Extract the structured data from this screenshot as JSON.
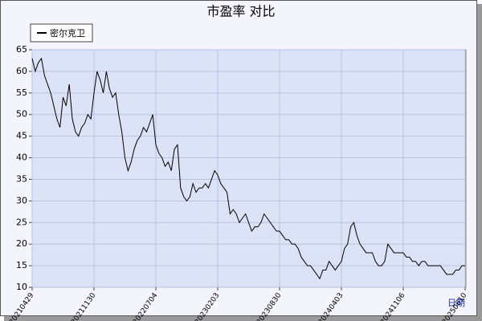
{
  "chart_data": {
    "type": "line",
    "title": "市盈率 对比",
    "x_label": "日期",
    "categories": [
      "20210429",
      null,
      null,
      null,
      null,
      null,
      null,
      null,
      null,
      null,
      null,
      null,
      null,
      null,
      null,
      null,
      null,
      null,
      null,
      null,
      "20211130",
      null,
      null,
      null,
      null,
      null,
      null,
      null,
      null,
      null,
      null,
      null,
      null,
      null,
      null,
      null,
      null,
      null,
      null,
      null,
      "20220704",
      null,
      null,
      null,
      null,
      null,
      null,
      null,
      null,
      null,
      null,
      null,
      null,
      null,
      null,
      null,
      null,
      null,
      null,
      null,
      "20230203",
      null,
      null,
      null,
      null,
      null,
      null,
      null,
      null,
      null,
      null,
      null,
      null,
      null,
      null,
      null,
      null,
      null,
      null,
      null,
      "20230830",
      null,
      null,
      null,
      null,
      null,
      null,
      null,
      null,
      null,
      null,
      null,
      null,
      null,
      null,
      null,
      null,
      null,
      null,
      null,
      "20240403",
      null,
      null,
      null,
      null,
      null,
      null,
      null,
      null,
      null,
      null,
      null,
      null,
      null,
      null,
      null,
      null,
      null,
      null,
      null,
      "20241106",
      null,
      null,
      null,
      null,
      null,
      null,
      null,
      null,
      null,
      null,
      null,
      null,
      null,
      null,
      null,
      null,
      null,
      null,
      null,
      "20250610"
    ],
    "series": [
      {
        "name": "密尔克卫",
        "color": "#000000",
        "values": [
          63,
          60,
          62,
          63,
          59,
          57,
          55,
          52,
          49,
          47,
          54,
          52,
          57,
          49,
          46,
          45,
          47,
          48,
          50,
          49,
          55,
          60,
          58,
          55,
          60,
          56,
          54,
          55,
          50,
          46,
          40,
          37,
          39,
          42,
          44,
          45,
          47,
          46,
          48,
          50,
          43,
          41,
          40,
          38,
          39,
          37,
          42,
          43,
          33,
          31,
          30,
          31,
          34,
          32,
          33,
          33,
          34,
          33,
          35,
          37,
          36,
          34,
          33,
          32,
          27,
          28,
          27,
          25,
          26,
          27,
          25,
          23,
          24,
          24,
          25,
          27,
          26,
          25,
          24,
          23,
          23,
          22,
          21,
          21,
          20,
          20,
          19,
          17,
          16,
          15,
          15,
          14,
          13,
          12,
          14,
          14,
          16,
          15,
          14,
          15,
          16,
          19,
          20,
          24,
          25,
          22,
          20,
          19,
          18,
          18,
          18,
          16,
          15,
          15,
          16,
          20,
          19,
          18,
          18,
          18,
          18,
          17,
          17,
          16,
          16,
          15,
          16,
          16,
          15,
          15,
          15,
          15,
          15,
          14,
          13,
          13,
          13,
          14,
          14,
          15,
          15
        ]
      }
    ],
    "ylim": [
      10,
      65
    ],
    "yticks": [
      10,
      15,
      20,
      25,
      30,
      35,
      40,
      45,
      50,
      55,
      60,
      65
    ],
    "grid": true,
    "legend": "top-left"
  }
}
